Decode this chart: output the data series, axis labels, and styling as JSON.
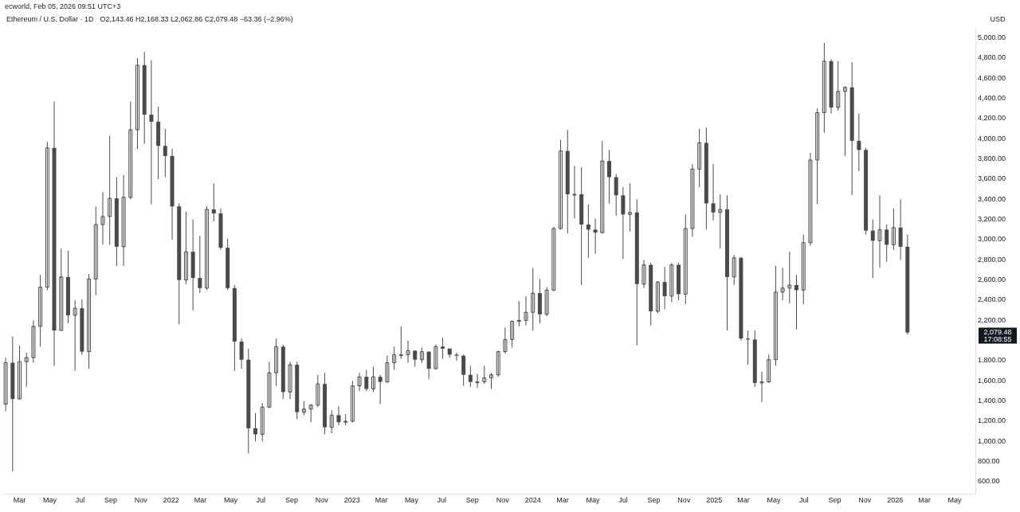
{
  "chart_data": {
    "type": "candlestick",
    "title": "Ethereum / U.S. Dollar · 1D",
    "ylabel": "USD",
    "color": "#4a4a4a",
    "annotations": [
      "ecworld, Feb 05, 2026 09:51 UTC+3",
      "O2,143.46 H2,168.33 L2,062.86 C2,079.48 −63.36 (−2.96%)",
      "2,079.48",
      "17:08:55"
    ],
    "x": [
      "2021-02-01",
      "2021-02-15",
      "2021-03-01",
      "2021-03-15",
      "2021-03-29",
      "2021-04-12",
      "2021-04-26",
      "2021-05-10",
      "2021-05-24",
      "2021-06-07",
      "2021-06-21",
      "2021-07-05",
      "2021-07-19",
      "2021-08-02",
      "2021-08-16",
      "2021-08-30",
      "2021-09-13",
      "2021-09-27",
      "2021-10-11",
      "2021-10-25",
      "2021-11-08",
      "2021-11-22",
      "2021-12-06",
      "2021-12-20",
      "2022-01-03",
      "2022-01-17",
      "2022-01-31",
      "2022-02-14",
      "2022-02-28",
      "2022-03-14",
      "2022-03-28",
      "2022-04-11",
      "2022-04-25",
      "2022-05-09",
      "2022-05-23",
      "2022-06-06",
      "2022-06-20",
      "2022-07-04",
      "2022-07-18",
      "2022-08-01",
      "2022-08-15",
      "2022-08-29",
      "2022-09-12",
      "2022-09-26",
      "2022-10-10",
      "2022-10-24",
      "2022-11-07",
      "2022-11-21",
      "2022-12-05",
      "2022-12-19",
      "2023-01-02",
      "2023-01-16",
      "2023-01-30",
      "2023-02-13",
      "2023-02-27",
      "2023-03-13",
      "2023-03-27",
      "2023-04-10",
      "2023-04-24",
      "2023-05-08",
      "2023-05-22",
      "2023-06-05",
      "2023-06-19",
      "2023-07-03",
      "2023-07-17",
      "2023-07-31",
      "2023-08-14",
      "2023-08-28",
      "2023-09-11",
      "2023-09-25",
      "2023-10-09",
      "2023-10-23",
      "2023-11-06",
      "2023-11-20",
      "2023-12-04",
      "2023-12-18",
      "2024-01-01",
      "2024-01-15",
      "2024-01-29",
      "2024-02-12",
      "2024-02-26",
      "2024-03-11",
      "2024-03-25",
      "2024-04-08",
      "2024-04-22",
      "2024-05-06",
      "2024-05-20",
      "2024-06-03",
      "2024-06-17",
      "2024-07-01",
      "2024-07-15",
      "2024-07-29",
      "2024-08-12",
      "2024-08-26",
      "2024-09-09",
      "2024-09-23",
      "2024-10-07",
      "2024-10-21",
      "2024-11-04",
      "2024-11-18",
      "2024-12-02",
      "2024-12-16",
      "2024-12-30",
      "2025-01-13",
      "2025-01-27",
      "2025-02-10",
      "2025-02-24",
      "2025-03-10",
      "2025-03-24",
      "2025-04-07",
      "2025-04-21",
      "2025-05-05",
      "2025-05-19",
      "2025-06-02",
      "2025-06-16",
      "2025-06-30",
      "2025-07-14",
      "2025-07-28",
      "2025-08-11",
      "2025-08-25",
      "2025-09-08",
      "2025-09-22",
      "2025-10-06",
      "2025-10-20",
      "2025-11-03",
      "2025-11-17",
      "2025-12-01",
      "2025-12-15",
      "2025-12-29",
      "2026-01-12",
      "2026-01-26"
    ],
    "ohlc": [
      [
        1370,
        1830,
        1300,
        1780
      ],
      [
        1780,
        2040,
        700,
        1420
      ],
      [
        1420,
        1950,
        1420,
        1790
      ],
      [
        1790,
        1880,
        1540,
        1830
      ],
      [
        1830,
        2200,
        1780,
        2140
      ],
      [
        2140,
        2650,
        1940,
        2530
      ],
      [
        2530,
        3970,
        2500,
        3910
      ],
      [
        3910,
        4370,
        1750,
        2100
      ],
      [
        2100,
        2910,
        2100,
        2630
      ],
      [
        2630,
        2890,
        2170,
        2250
      ],
      [
        2250,
        2400,
        1700,
        2320
      ],
      [
        2320,
        2410,
        1860,
        1890
      ],
      [
        1890,
        2660,
        1720,
        2610
      ],
      [
        2610,
        3330,
        2450,
        3150
      ],
      [
        3150,
        3470,
        2950,
        3230
      ],
      [
        3230,
        4030,
        2950,
        3410
      ],
      [
        3410,
        3620,
        2740,
        2930
      ],
      [
        2930,
        3640,
        2740,
        3420
      ],
      [
        3420,
        4370,
        3400,
        4090
      ],
      [
        4090,
        4800,
        3900,
        4730
      ],
      [
        4730,
        4860,
        3950,
        4240
      ],
      [
        4240,
        4780,
        3350,
        4170
      ],
      [
        4170,
        4320,
        3600,
        3930
      ],
      [
        3930,
        4100,
        3620,
        3830
      ],
      [
        3830,
        3900,
        3000,
        3330
      ],
      [
        3330,
        3360,
        2160,
        2600
      ],
      [
        2600,
        3280,
        2560,
        2880
      ],
      [
        2880,
        3200,
        2300,
        2620
      ],
      [
        2620,
        3040,
        2470,
        2520
      ],
      [
        2520,
        3330,
        2500,
        3300
      ],
      [
        3300,
        3560,
        3180,
        3260
      ],
      [
        3260,
        3310,
        2900,
        2920
      ],
      [
        2920,
        3010,
        2500,
        2520
      ],
      [
        2520,
        2550,
        1700,
        1990
      ],
      [
        1990,
        2020,
        1720,
        1810
      ],
      [
        1810,
        1920,
        880,
        1130
      ],
      [
        1130,
        1280,
        1000,
        1070
      ],
      [
        1070,
        1380,
        1000,
        1340
      ],
      [
        1340,
        1790,
        1330,
        1680
      ],
      [
        1680,
        2020,
        1550,
        1940
      ],
      [
        1940,
        1960,
        1420,
        1490
      ],
      [
        1490,
        1790,
        1420,
        1760
      ],
      [
        1760,
        1790,
        1220,
        1290
      ],
      [
        1290,
        1400,
        1260,
        1320
      ],
      [
        1320,
        1370,
        1190,
        1360
      ],
      [
        1360,
        1660,
        1340,
        1570
      ],
      [
        1570,
        1680,
        1070,
        1140
      ],
      [
        1140,
        1310,
        1080,
        1260
      ],
      [
        1260,
        1350,
        1160,
        1190
      ],
      [
        1190,
        1270,
        1160,
        1200
      ],
      [
        1200,
        1600,
        1190,
        1550
      ],
      [
        1550,
        1680,
        1500,
        1640
      ],
      [
        1640,
        1710,
        1500,
        1520
      ],
      [
        1520,
        1740,
        1490,
        1640
      ],
      [
        1640,
        1660,
        1370,
        1590
      ],
      [
        1590,
        1850,
        1580,
        1780
      ],
      [
        1780,
        1940,
        1710,
        1860
      ],
      [
        1860,
        2140,
        1820,
        1860
      ],
      [
        1860,
        2000,
        1780,
        1900
      ],
      [
        1900,
        1900,
        1740,
        1810
      ],
      [
        1810,
        1930,
        1780,
        1890
      ],
      [
        1890,
        1890,
        1620,
        1720
      ],
      [
        1720,
        1960,
        1720,
        1940
      ],
      [
        1940,
        2030,
        1820,
        1920
      ],
      [
        1920,
        1920,
        1830,
        1860
      ],
      [
        1860,
        1880,
        1800,
        1850
      ],
      [
        1850,
        1860,
        1550,
        1660
      ],
      [
        1660,
        1750,
        1540,
        1590
      ],
      [
        1590,
        1670,
        1530,
        1590
      ],
      [
        1590,
        1750,
        1570,
        1630
      ],
      [
        1630,
        1680,
        1520,
        1660
      ],
      [
        1660,
        1900,
        1640,
        1890
      ],
      [
        1890,
        2130,
        1870,
        2010
      ],
      [
        2010,
        2200,
        1930,
        2190
      ],
      [
        2190,
        2390,
        2140,
        2200
      ],
      [
        2200,
        2440,
        2150,
        2280
      ],
      [
        2280,
        2720,
        2100,
        2470
      ],
      [
        2470,
        2610,
        2170,
        2260
      ],
      [
        2260,
        2530,
        2240,
        2500
      ],
      [
        2500,
        3130,
        2490,
        3110
      ],
      [
        3110,
        3990,
        3100,
        3880
      ],
      [
        3880,
        4090,
        3060,
        3450
      ],
      [
        3450,
        3730,
        3210,
        3450
      ],
      [
        3450,
        3720,
        2550,
        3150
      ],
      [
        3150,
        3350,
        2820,
        3100
      ],
      [
        3100,
        3210,
        2860,
        3070
      ],
      [
        3070,
        3980,
        3060,
        3780
      ],
      [
        3780,
        3890,
        3360,
        3620
      ],
      [
        3620,
        3650,
        3240,
        3440
      ],
      [
        3440,
        3520,
        2810,
        3250
      ],
      [
        3250,
        3560,
        3080,
        3270
      ],
      [
        3270,
        3400,
        1950,
        2560
      ],
      [
        2560,
        2800,
        2520,
        2750
      ],
      [
        2750,
        2770,
        2150,
        2290
      ],
      [
        2290,
        2590,
        2270,
        2580
      ],
      [
        2580,
        2730,
        2310,
        2440
      ],
      [
        2440,
        2770,
        2380,
        2750
      ],
      [
        2750,
        2770,
        2400,
        2460
      ],
      [
        2460,
        3250,
        2360,
        3110
      ],
      [
        3110,
        3750,
        3030,
        3700
      ],
      [
        3700,
        4100,
        3520,
        3960
      ],
      [
        3960,
        4110,
        3100,
        3360
      ],
      [
        3360,
        3750,
        3190,
        3270
      ],
      [
        3270,
        3450,
        2910,
        3300
      ],
      [
        3300,
        3440,
        2100,
        2630
      ],
      [
        2630,
        2850,
        2550,
        2820
      ],
      [
        2820,
        2830,
        2000,
        2020
      ],
      [
        2020,
        2100,
        1760,
        2010
      ],
      [
        2010,
        2100,
        1540,
        1580
      ],
      [
        1580,
        1690,
        1390,
        1590
      ],
      [
        1590,
        1860,
        1580,
        1810
      ],
      [
        1810,
        2740,
        1750,
        2480
      ],
      [
        2480,
        2720,
        2400,
        2520
      ],
      [
        2520,
        2880,
        2370,
        2550
      ],
      [
        2550,
        2650,
        2110,
        2500
      ],
      [
        2500,
        3050,
        2360,
        2970
      ],
      [
        2970,
        3860,
        2940,
        3790
      ],
      [
        3790,
        4300,
        3350,
        4260
      ],
      [
        4260,
        4950,
        4060,
        4770
      ],
      [
        4770,
        4790,
        4250,
        4310
      ],
      [
        4310,
        4770,
        4280,
        4470
      ],
      [
        4470,
        4520,
        3830,
        4510
      ],
      [
        4510,
        4760,
        3440,
        3980
      ],
      [
        3980,
        4250,
        3680,
        3890
      ],
      [
        3890,
        3910,
        3050,
        3090
      ],
      [
        3090,
        3200,
        2620,
        2990
      ],
      [
        2990,
        3440,
        2720,
        3100
      ],
      [
        3100,
        3150,
        2780,
        2950
      ],
      [
        2950,
        3310,
        2900,
        3120
      ],
      [
        3120,
        3400,
        2800,
        2930
      ],
      [
        2930,
        3050,
        2060,
        2079.48
      ]
    ],
    "xlim": [
      "2021-01-27",
      "2026-06-12"
    ],
    "xticks": [
      {
        "value": "2021-03-01",
        "label": "Mar"
      },
      {
        "value": "2021-05-01",
        "label": "May"
      },
      {
        "value": "2021-07-01",
        "label": "Jul"
      },
      {
        "value": "2021-09-01",
        "label": "Sep"
      },
      {
        "value": "2021-11-01",
        "label": "Nov"
      },
      {
        "value": "2022-01-01",
        "label": "2022"
      },
      {
        "value": "2022-03-01",
        "label": "Mar"
      },
      {
        "value": "2022-05-01",
        "label": "May"
      },
      {
        "value": "2022-07-01",
        "label": "Jul"
      },
      {
        "value": "2022-09-01",
        "label": "Sep"
      },
      {
        "value": "2022-11-01",
        "label": "Nov"
      },
      {
        "value": "2023-01-01",
        "label": "2023"
      },
      {
        "value": "2023-03-01",
        "label": "Mar"
      },
      {
        "value": "2023-05-01",
        "label": "May"
      },
      {
        "value": "2023-07-01",
        "label": "Jul"
      },
      {
        "value": "2023-09-01",
        "label": "Sep"
      },
      {
        "value": "2023-11-01",
        "label": "Nov"
      },
      {
        "value": "2024-01-01",
        "label": "2024"
      },
      {
        "value": "2024-03-01",
        "label": "Mar"
      },
      {
        "value": "2024-05-01",
        "label": "May"
      },
      {
        "value": "2024-07-01",
        "label": "Jul"
      },
      {
        "value": "2024-09-01",
        "label": "Sep"
      },
      {
        "value": "2024-11-01",
        "label": "Nov"
      },
      {
        "value": "2025-01-01",
        "label": "2025"
      },
      {
        "value": "2025-03-01",
        "label": "Mar"
      },
      {
        "value": "2025-05-01",
        "label": "May"
      },
      {
        "value": "2025-07-01",
        "label": "Jul"
      },
      {
        "value": "2025-09-01",
        "label": "Sep"
      },
      {
        "value": "2025-11-01",
        "label": "Nov"
      },
      {
        "value": "2026-01-01",
        "label": "2026"
      },
      {
        "value": "2026-03-01",
        "label": "Mar"
      },
      {
        "value": "2026-05-01",
        "label": "May"
      }
    ],
    "ylim": [
      480,
      5100
    ],
    "yticks": [
      {
        "value": 600,
        "label": "600.00"
      },
      {
        "value": 800,
        "label": "800.00"
      },
      {
        "value": 1000,
        "label": "1,000.00"
      },
      {
        "value": 1200,
        "label": "1,200.00"
      },
      {
        "value": 1400,
        "label": "1,400.00"
      },
      {
        "value": 1600,
        "label": "1,600.00"
      },
      {
        "value": 1800,
        "label": "1,800.00"
      },
      {
        "value": 2200,
        "label": "2,200.00"
      },
      {
        "value": 2400,
        "label": "2,400.00"
      },
      {
        "value": 2600,
        "label": "2,600.00"
      },
      {
        "value": 2800,
        "label": "2,800.00"
      },
      {
        "value": 3000,
        "label": "3,000.00"
      },
      {
        "value": 3200,
        "label": "3,200.00"
      },
      {
        "value": 3400,
        "label": "3,400.00"
      },
      {
        "value": 3600,
        "label": "3,600.00"
      },
      {
        "value": 3800,
        "label": "3,800.00"
      },
      {
        "value": 4000,
        "label": "4,000.00"
      },
      {
        "value": 4200,
        "label": "4,200.00"
      },
      {
        "value": 4400,
        "label": "4,400.00"
      },
      {
        "value": 4600,
        "label": "4,600.00"
      },
      {
        "value": 4800,
        "label": "4,800.00"
      },
      {
        "value": 5000,
        "label": "5,000.00"
      }
    ]
  }
}
